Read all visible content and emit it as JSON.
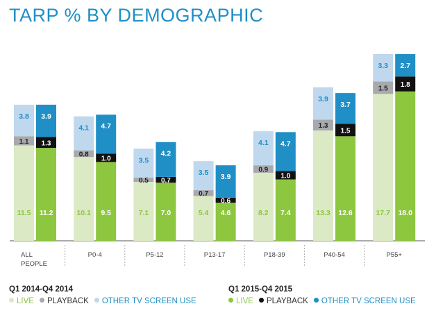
{
  "chart_data": {
    "type": "bar",
    "title": "TARP % BY DEMOGRAPHIC",
    "stacked": true,
    "categories": [
      "ALL PEOPLE",
      "P0-4",
      "P5-12",
      "P13-17",
      "P18-39",
      "P40-54",
      "P55+"
    ],
    "groups": [
      {
        "name": "Q1 2014-Q4 2014",
        "series": [
          {
            "name": "LIVE",
            "color": "#dbeac4",
            "label_color": "#8dc63f",
            "values": [
              11.5,
              10.1,
              7.1,
              5.4,
              8.2,
              13.3,
              17.7
            ]
          },
          {
            "name": "PLAYBACK",
            "color": "#a7a9ac",
            "label_color": "#231f20",
            "values": [
              1.1,
              0.8,
              0.5,
              0.7,
              0.9,
              1.3,
              1.5
            ]
          },
          {
            "name": "OTHER TV SCREEN USE",
            "color": "#bfd8ee",
            "label_color": "#1f8fc6",
            "values": [
              3.8,
              4.1,
              3.5,
              3.5,
              4.1,
              3.9,
              3.3
            ]
          }
        ]
      },
      {
        "name": "Q1 2015-Q4 2015",
        "series": [
          {
            "name": "LIVE",
            "color": "#8dc63f",
            "label_color": "#ffffff",
            "values": [
              11.2,
              9.5,
              7.0,
              4.6,
              7.4,
              12.6,
              18.0
            ]
          },
          {
            "name": "PLAYBACK",
            "color": "#111111",
            "label_color": "#ffffff",
            "values": [
              1.3,
              1.0,
              0.7,
              0.6,
              1.0,
              1.5,
              1.8
            ]
          },
          {
            "name": "OTHER TV SCREEN USE",
            "color": "#1f8fc6",
            "label_color": "#ffffff",
            "values": [
              3.9,
              4.7,
              4.2,
              3.9,
              4.7,
              3.7,
              2.7
            ]
          }
        ]
      }
    ],
    "ylim": [
      0,
      24
    ],
    "grid": false,
    "legend_position": "bottom"
  },
  "legend": {
    "left": {
      "heading": "Q1 2014-Q4 2014",
      "items": [
        {
          "label": "LIVE",
          "color": "#dbeac4"
        },
        {
          "label": "PLAYBACK",
          "color": "#a7a9ac"
        },
        {
          "label": "OTHER TV SCREEN USE",
          "color": "#bfd8ee"
        }
      ]
    },
    "right": {
      "heading": "Q1 2015-Q4 2015",
      "items": [
        {
          "label": "LIVE",
          "color": "#8dc63f"
        },
        {
          "label": "PLAYBACK",
          "color": "#111111"
        },
        {
          "label": "OTHER TV SCREEN USE",
          "color": "#1f8fc6"
        }
      ]
    },
    "text_colors": {
      "LIVE": "#8dc63f",
      "PLAYBACK": "#333333",
      "OTHER TV SCREEN USE": "#1f8fc6"
    }
  }
}
